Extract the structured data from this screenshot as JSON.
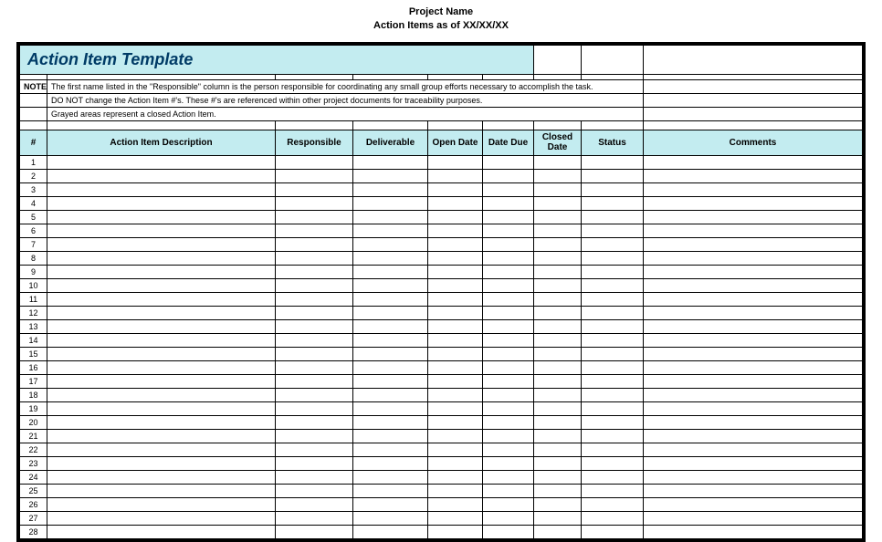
{
  "header": {
    "line1": "Project Name",
    "line2": "Action Items as of XX/XX/XX"
  },
  "title": "Action Item Template",
  "notes": {
    "label": "NOTE:",
    "line1": "The first name listed in the \"Responsible\" column is the person responsible for coordinating any small group efforts necessary to accomplish the task.",
    "line2": "DO NOT change the Action Item #'s.   These #'s are referenced within other project documents for traceability purposes.",
    "line3": "Grayed areas represent a closed Action Item."
  },
  "columns": {
    "num": "#",
    "desc": "Action Item Description",
    "resp": "Responsible",
    "deliv": "Deliverable",
    "open": "Open Date",
    "due": "Date Due",
    "closed": "Closed Date",
    "status": "Status",
    "comments": "Comments"
  },
  "row_count": 28,
  "colors": {
    "header_fill": "#c3ecf0",
    "title_text": "#003b66",
    "border": "#000000",
    "background": "#ffffff"
  }
}
